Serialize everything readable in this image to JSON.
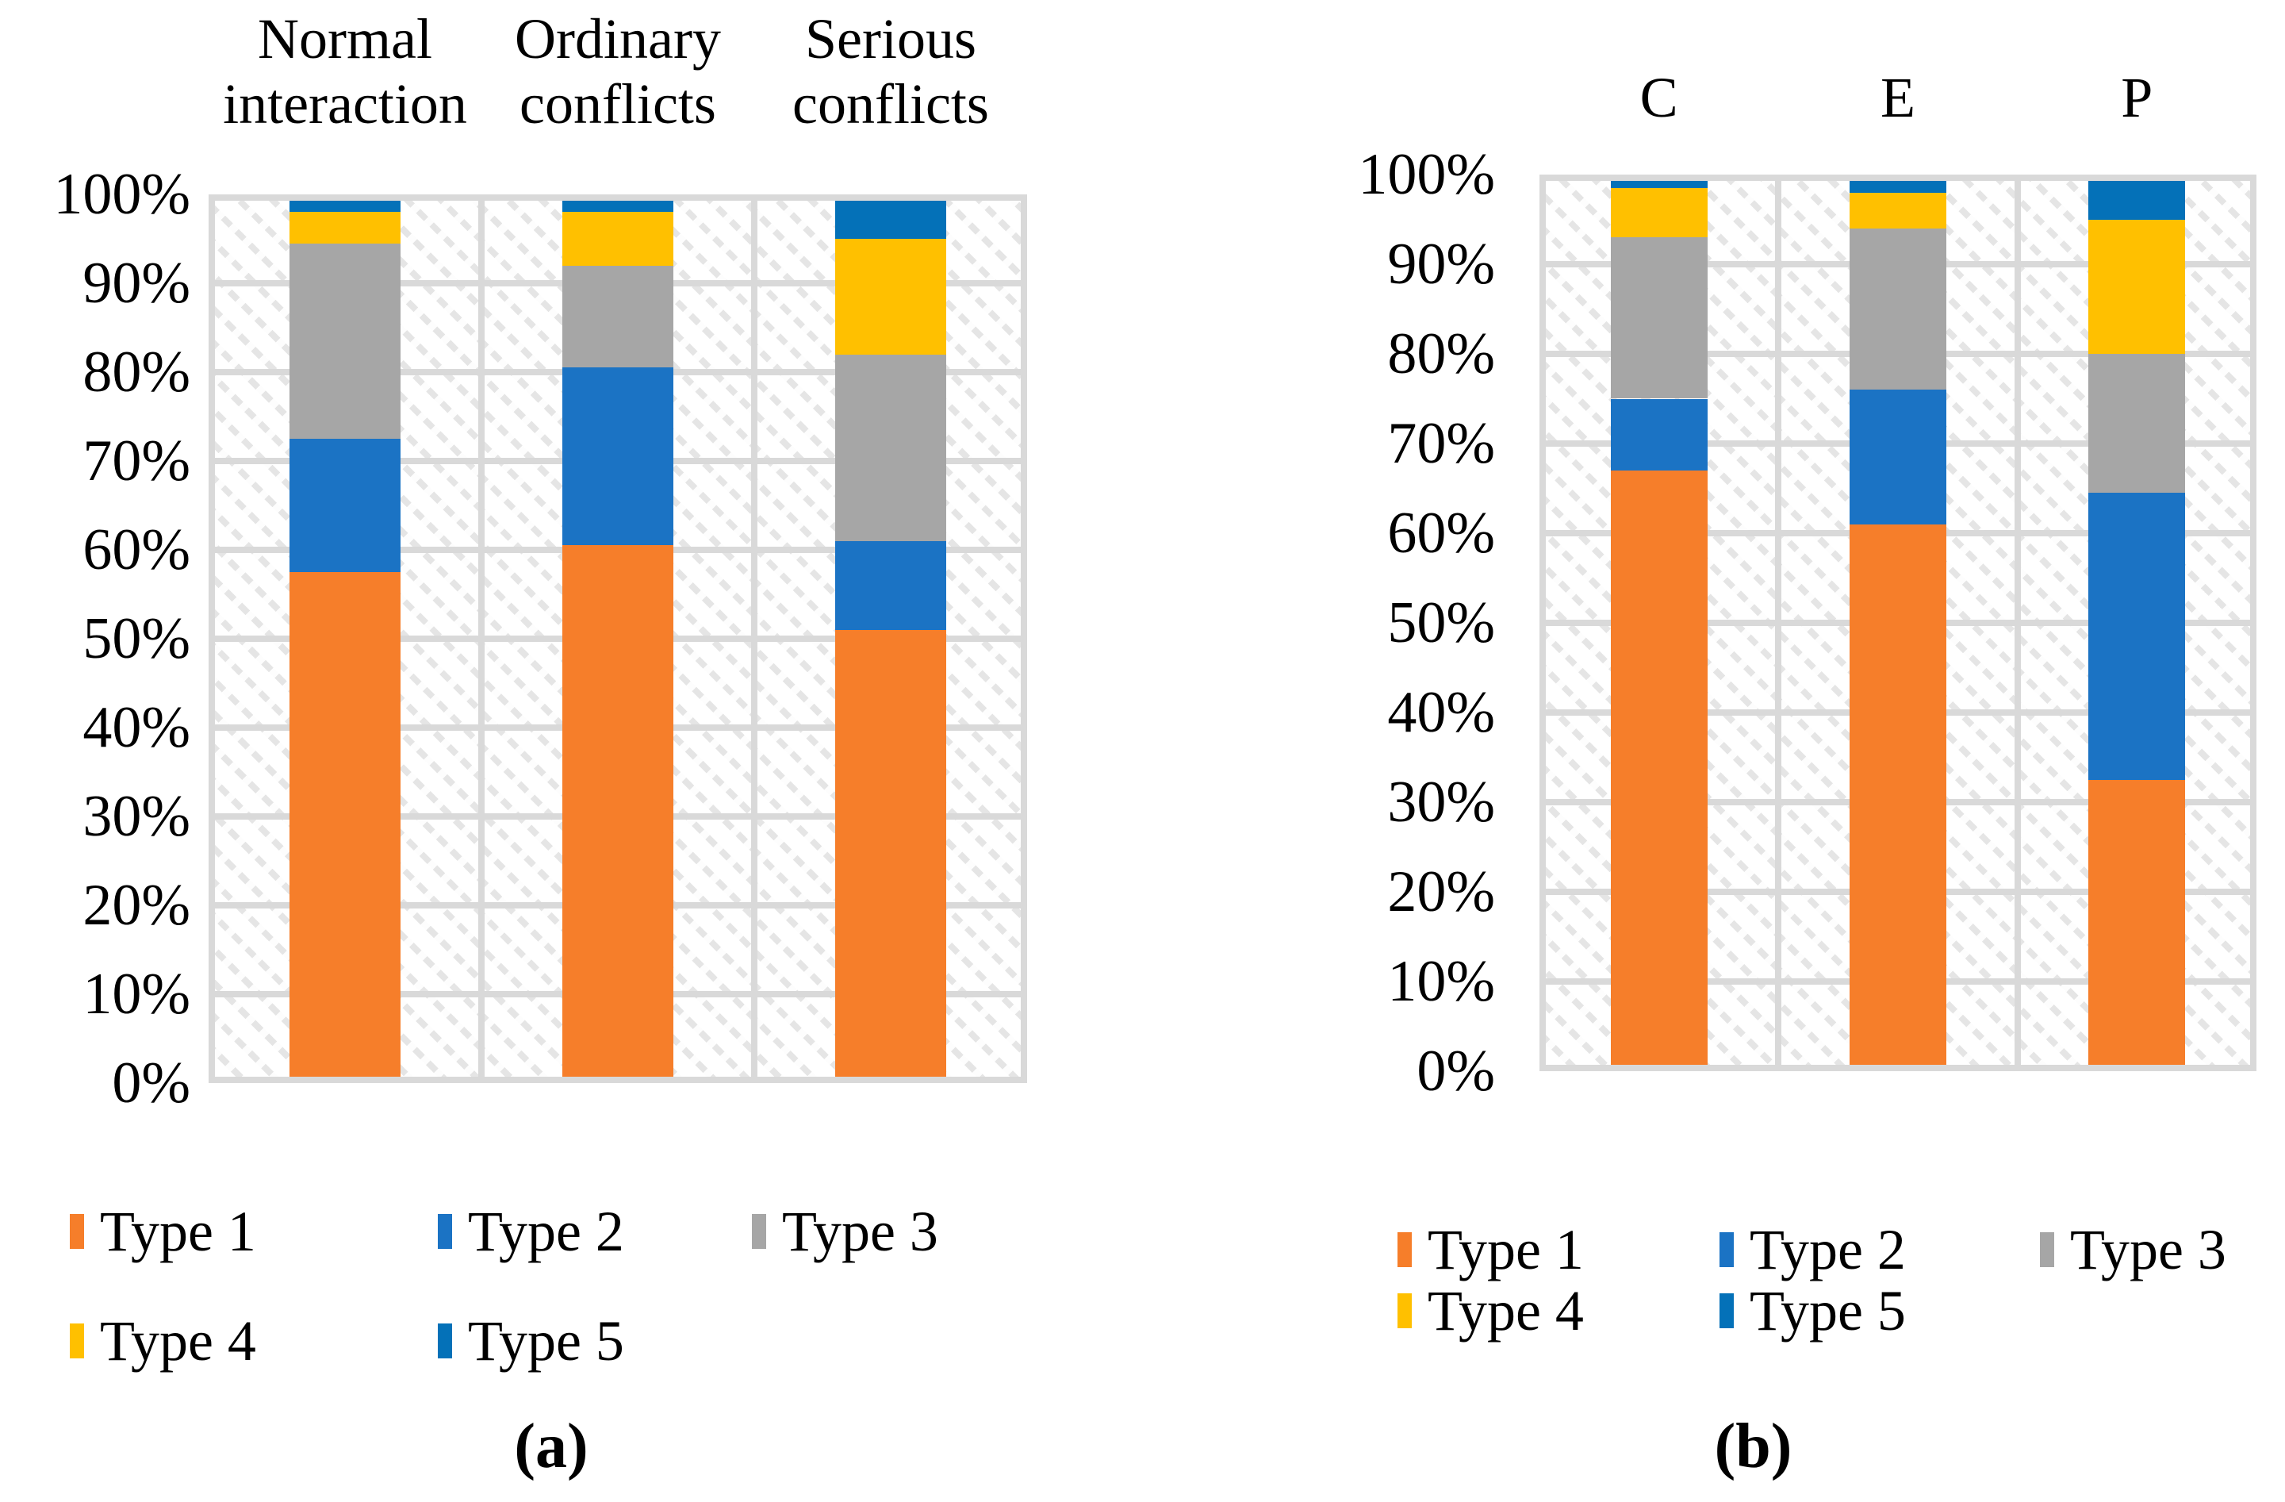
{
  "chart_data": [
    {
      "id": "a",
      "type": "bar",
      "stacked": true,
      "units": "percent",
      "title": "",
      "xlabel": "",
      "ylabel": "",
      "ylim": [
        0,
        100
      ],
      "grid": true,
      "caption": "(a)",
      "categories": [
        "Normal interaction",
        "Ordinary conflicts",
        "Serious conflicts"
      ],
      "y_ticks": [
        "0%",
        "10%",
        "20%",
        "30%",
        "40%",
        "50%",
        "60%",
        "70%",
        "80%",
        "90%",
        "100%"
      ],
      "series": [
        {
          "name": "Type 1",
          "color": "#F67E2A",
          "values": [
            57.5,
            60.5,
            51.0
          ]
        },
        {
          "name": "Type 2",
          "color": "#1B73C4",
          "values": [
            15.0,
            20.0,
            10.0
          ]
        },
        {
          "name": "Type 3",
          "color": "#A6A6A6",
          "values": [
            22.0,
            11.5,
            21.0
          ]
        },
        {
          "name": "Type 4",
          "color": "#FFC000",
          "values": [
            3.5,
            6.0,
            13.0
          ]
        },
        {
          "name": "Type 5",
          "color": "#0471B8",
          "values": [
            2.0,
            2.0,
            5.0
          ]
        }
      ],
      "legend_rows": [
        [
          "Type 1",
          "Type 2",
          "Type 3"
        ],
        [
          "Type 4",
          "Type 5"
        ]
      ],
      "legend_position": "bottom"
    },
    {
      "id": "b",
      "type": "bar",
      "stacked": true,
      "units": "percent",
      "title": "",
      "xlabel": "",
      "ylabel": "",
      "ylim": [
        0,
        100
      ],
      "grid": true,
      "caption": "(b)",
      "categories": [
        "C",
        "E",
        "P"
      ],
      "y_ticks": [
        "0%",
        "10%",
        "20%",
        "30%",
        "40%",
        "50%",
        "60%",
        "70%",
        "80%",
        "90%",
        "100%"
      ],
      "series": [
        {
          "name": "Type 1",
          "color": "#F67E2A",
          "values": [
            67.0,
            61.0,
            32.5
          ]
        },
        {
          "name": "Type 2",
          "color": "#1B73C4",
          "values": [
            8.0,
            15.0,
            32.0
          ]
        },
        {
          "name": "Type 3",
          "color": "#A6A6A6",
          "values": [
            18.0,
            18.0,
            15.5
          ]
        },
        {
          "name": "Type 4",
          "color": "#FFC000",
          "values": [
            5.5,
            4.0,
            15.0
          ]
        },
        {
          "name": "Type 5",
          "color": "#0471B8",
          "values": [
            1.5,
            2.0,
            5.0
          ]
        }
      ],
      "legend_rows": [
        [
          "Type 1",
          "Type 2",
          "Type 3"
        ],
        [
          "Type 4",
          "Type 5"
        ]
      ],
      "legend_position": "bottom"
    }
  ],
  "colors": {
    "type1_orange": "#F67E2A",
    "type2_blue": "#1B73C4",
    "type3_gray": "#A6A6A6",
    "type4_yellow": "#FFC000",
    "type5_dark_blue": "#0471B8",
    "gridline": "#D9D9D9",
    "hatch": "#E5E5E5"
  }
}
